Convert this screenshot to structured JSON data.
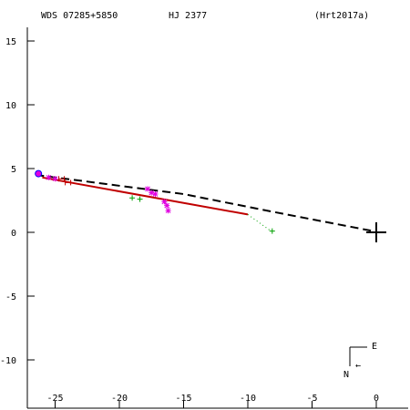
{
  "header": {
    "left": "WDS 07285+5850",
    "center": "HJ 2377",
    "right": "(Hrt2017a)"
  },
  "compass": {
    "east": "E",
    "north": "N",
    "arrow": "←"
  },
  "colors": {
    "axis": "#000000",
    "orbit_fit": "#000000",
    "red_track": "#c00000",
    "green": "#00a000",
    "magenta": "#e000e0",
    "blue": "#0000ff"
  },
  "chart_data": {
    "type": "scatter",
    "title": "",
    "xlabel": "",
    "ylabel": "",
    "xlim": [
      -27,
      1.3
    ],
    "ylim": [
      -13.5,
      15.8
    ],
    "xticks": [
      -25,
      -20,
      -15,
      -10,
      -5,
      0
    ],
    "yticks": [
      15,
      10,
      5,
      0,
      -5,
      -10
    ],
    "xtick_labels": [
      "-25",
      "-20",
      "-15",
      "-10",
      "-5",
      "0"
    ],
    "ytick_labels": [
      "15",
      "10",
      "5",
      "0",
      "-5",
      "-10"
    ],
    "primary": [
      0,
      0
    ],
    "series": [
      {
        "kind": "dashed_line",
        "x": [
          -26.5,
          -15.0,
          -8.0,
          0.0
        ],
        "y": [
          4.5,
          3.0,
          1.6,
          0.05
        ]
      },
      {
        "kind": "red_line",
        "x": [
          -26.0,
          -10.0
        ],
        "y": [
          4.3,
          1.4
        ]
      },
      {
        "kind": "green_dotted",
        "x": [
          -10.0,
          -8.2
        ],
        "y": [
          1.4,
          0.1
        ]
      },
      {
        "kind": "green_plus",
        "x": [
          -19.0,
          -18.4,
          -8.1
        ],
        "y": [
          2.7,
          2.6,
          0.1
        ]
      },
      {
        "kind": "magenta_star",
        "x": [
          -25.5,
          -25.0,
          -17.8,
          -17.5,
          -17.2,
          -16.5,
          -16.3,
          -16.2
        ],
        "y": [
          4.3,
          4.2,
          3.4,
          3.1,
          3.0,
          2.4,
          2.1,
          1.7
        ]
      },
      {
        "kind": "red_h",
        "x": [
          -24.5,
          -24.0
        ],
        "y": [
          4.2,
          3.9
        ]
      },
      {
        "kind": "blue_circle",
        "x": [
          -26.3
        ],
        "y": [
          4.6
        ]
      }
    ]
  }
}
